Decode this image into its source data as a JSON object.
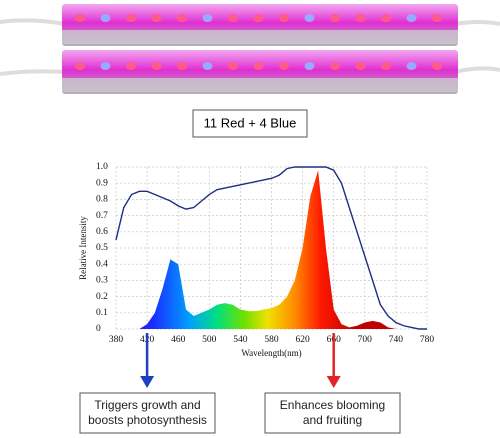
{
  "caption": "11 Red + 4 Blue",
  "chart_data": {
    "type": "area",
    "xlabel": "Wavelength(nm)",
    "ylabel": "Relative Intensity",
    "x": [
      380,
      390,
      400,
      410,
      420,
      430,
      440,
      450,
      460,
      470,
      480,
      490,
      500,
      510,
      520,
      530,
      540,
      550,
      560,
      570,
      580,
      590,
      600,
      610,
      620,
      630,
      640,
      650,
      660,
      670,
      680,
      690,
      700,
      710,
      720,
      730,
      740,
      750,
      760,
      770,
      780
    ],
    "series": [
      {
        "values": [
          0,
          0,
          0,
          0,
          0.03,
          0.1,
          0.25,
          0.43,
          0.4,
          0.12,
          0.08,
          0.1,
          0.12,
          0.15,
          0.16,
          0.15,
          0.12,
          0.11,
          0.11,
          0.12,
          0.13,
          0.15,
          0.2,
          0.3,
          0.5,
          0.82,
          0.98,
          0.5,
          0.12,
          0.03,
          0.01,
          0.02,
          0.04,
          0.05,
          0.04,
          0.01,
          0,
          0,
          0,
          0,
          0
        ]
      },
      {
        "color": "#1c2f7e",
        "values": [
          0.55,
          0.75,
          0.83,
          0.85,
          0.85,
          0.83,
          0.81,
          0.79,
          0.76,
          0.74,
          0.75,
          0.79,
          0.83,
          0.86,
          0.87,
          0.88,
          0.89,
          0.9,
          0.91,
          0.92,
          0.93,
          0.95,
          0.99,
          1,
          1,
          1,
          1,
          1,
          0.98,
          0.9,
          0.75,
          0.6,
          0.45,
          0.3,
          0.15,
          0.08,
          0.04,
          0.02,
          0.01,
          0,
          0
        ]
      }
    ],
    "xlim": [
      380,
      780
    ],
    "xticks": [
      380,
      420,
      460,
      500,
      540,
      580,
      620,
      660,
      700,
      740,
      780
    ],
    "ylim": [
      0,
      1
    ],
    "yticks": [
      0,
      0.1,
      0.2,
      0.3,
      0.4,
      0.5,
      0.6,
      0.7,
      0.8,
      0.9,
      {
        "value": 1,
        "label": "1.0"
      }
    ],
    "grid": true,
    "annotations": [
      {
        "color": "#1f3fbf",
        "x": 420,
        "lines": [
          "Triggers growth and",
          "boosts photosynthesis"
        ]
      },
      {
        "color": "#e0242a",
        "x": 660,
        "lines": [
          "Enhances blooming",
          "and fruiting"
        ]
      }
    ]
  }
}
